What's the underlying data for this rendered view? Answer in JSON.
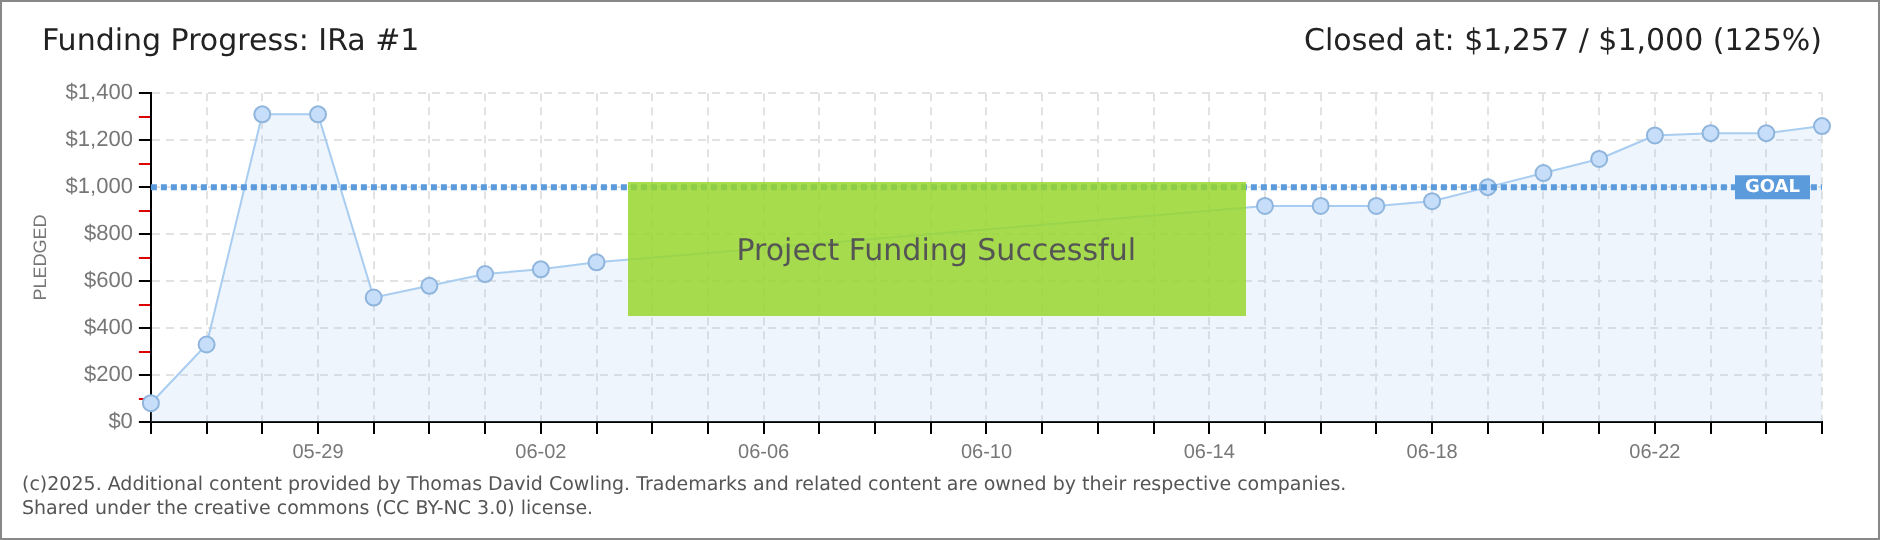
{
  "chart_data": {
    "type": "area",
    "title": "Funding Progress: IRa #1",
    "subtitle": "Closed at: $1,257 / $1,000 (125%)",
    "ylabel": "PLEDGED",
    "categories": [
      null,
      null,
      null,
      "05-29",
      null,
      null,
      null,
      "06-02",
      null,
      null,
      null,
      "06-06",
      null,
      null,
      null,
      "06-10",
      null,
      null,
      null,
      "06-14",
      null,
      null,
      null,
      "06-18",
      null,
      null,
      null,
      "06-22",
      null,
      null,
      null
    ],
    "series": [
      {
        "color": "#a9cdf0",
        "values": [
          80,
          330,
          1310,
          1310,
          530,
          580,
          630,
          650,
          680,
          null,
          null,
          null,
          null,
          null,
          null,
          null,
          null,
          null,
          null,
          null,
          920,
          920,
          920,
          940,
          1000,
          1060,
          1120,
          1220,
          1230,
          1230,
          1260
        ]
      }
    ],
    "ylim": [
      0,
      1400
    ],
    "yticks": [
      {
        "value": 0,
        "label": "$0"
      },
      {
        "value": 100,
        "label": null
      },
      {
        "value": 200,
        "label": "$200"
      },
      {
        "value": 300,
        "label": null
      },
      {
        "value": 400,
        "label": "$400"
      },
      {
        "value": 500,
        "label": null
      },
      {
        "value": 600,
        "label": "$600"
      },
      {
        "value": 700,
        "label": null
      },
      {
        "value": 800,
        "label": "$800"
      },
      {
        "value": 900,
        "label": null
      },
      {
        "value": 1000,
        "label": "$1,000"
      },
      {
        "value": 1100,
        "label": null
      },
      {
        "value": 1200,
        "label": "$1,200"
      },
      {
        "value": 1300,
        "label": null
      },
      {
        "value": 1400,
        "label": "$1,400"
      }
    ],
    "ref_lines": [
      {
        "axis": "y",
        "value": 1000,
        "label": "GOAL",
        "color": "#5b9bdc",
        "line_style": "dotted"
      }
    ],
    "annotations": [
      "Project Funding Successful",
      "(c)2025. Additional content provided by Thomas David Cowling. Trademarks and related content are owned by their respective companies.",
      "Shared under the creative commons (CC BY-NC 3.0) license."
    ],
    "grid": true,
    "legend": false,
    "marker": "circle",
    "line_style": "solid"
  }
}
